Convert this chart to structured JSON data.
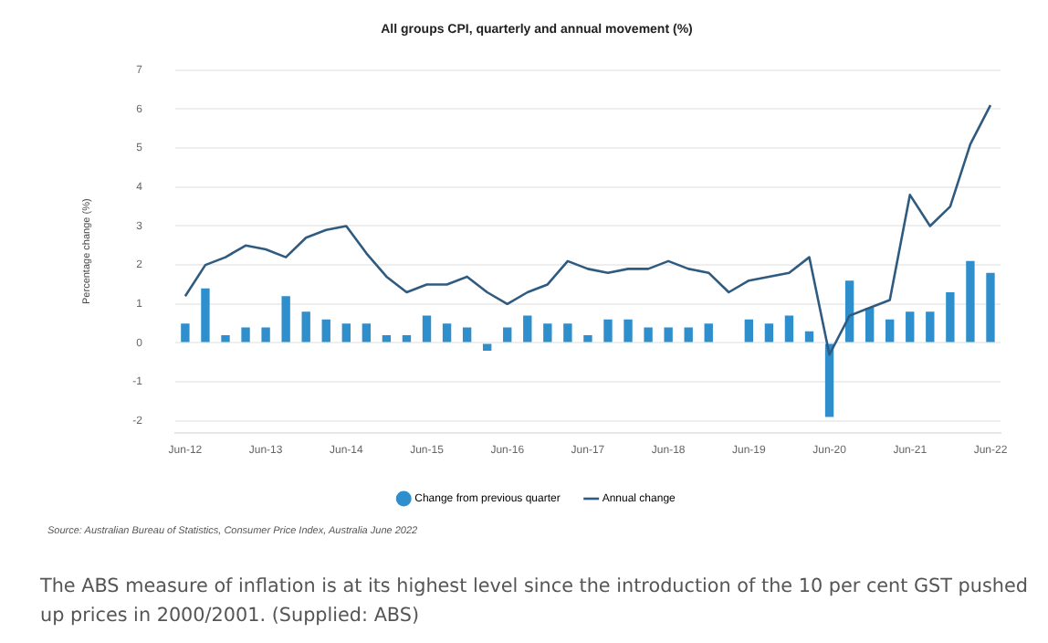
{
  "chart_data": {
    "type": "bar",
    "title": "All groups CPI, quarterly and annual movement (%)",
    "ylabel": "Percentage change (%)",
    "categories": [
      "Jun-12",
      null,
      null,
      null,
      "Jun-13",
      null,
      null,
      null,
      "Jun-14",
      null,
      null,
      null,
      "Jun-15",
      null,
      null,
      null,
      "Jun-16",
      null,
      null,
      null,
      "Jun-17",
      null,
      null,
      null,
      "Jun-18",
      null,
      null,
      null,
      "Jun-19",
      null,
      null,
      null,
      "Jun-20",
      null,
      null,
      null,
      "Jun-21",
      null,
      null,
      null,
      "Jun-22"
    ],
    "series": [
      {
        "name": "Change from previous quarter",
        "color": "#2e8fcc",
        "values": [
          0.5,
          1.4,
          0.2,
          0.4,
          0.4,
          1.2,
          0.8,
          0.6,
          0.5,
          0.5,
          0.2,
          0.2,
          0.7,
          0.5,
          0.4,
          -0.2,
          0.4,
          0.7,
          0.5,
          0.5,
          0.2,
          0.6,
          0.6,
          0.4,
          0.4,
          0.4,
          0.5,
          0,
          0.6,
          0.5,
          0.7,
          0.3,
          -1.9,
          1.6,
          0.9,
          0.6,
          0.8,
          0.8,
          1.3,
          2.1,
          1.8
        ]
      },
      {
        "name": "Annual change",
        "type": "line",
        "color": "#2f5b80",
        "values": [
          1.2,
          2.0,
          2.2,
          2.5,
          2.4,
          2.2,
          2.7,
          2.9,
          3.0,
          2.3,
          1.7,
          1.3,
          1.5,
          1.5,
          1.7,
          1.3,
          1.0,
          1.3,
          1.5,
          2.1,
          1.9,
          1.8,
          1.9,
          1.9,
          2.1,
          1.9,
          1.8,
          1.3,
          1.6,
          1.7,
          1.8,
          2.2,
          -0.3,
          0.7,
          0.9,
          1.1,
          3.8,
          3.0,
          3.5,
          5.1,
          6.1
        ]
      }
    ],
    "ylim": [
      -2.3,
      7
    ],
    "yticks": [
      -2,
      -1,
      0,
      1,
      2,
      3,
      4,
      5,
      6,
      7
    ],
    "grid": "y",
    "legend": "bottom",
    "marker": "none",
    "annotations": [
      "Source: Australian Bureau of Statistics, Consumer Price Index, Australia June 2022",
      "The ABS measure of inflation is at its highest level since the introduction of the 10 per cent GST pushed up prices in 2000/2001. (Supplied: ABS)"
    ]
  }
}
